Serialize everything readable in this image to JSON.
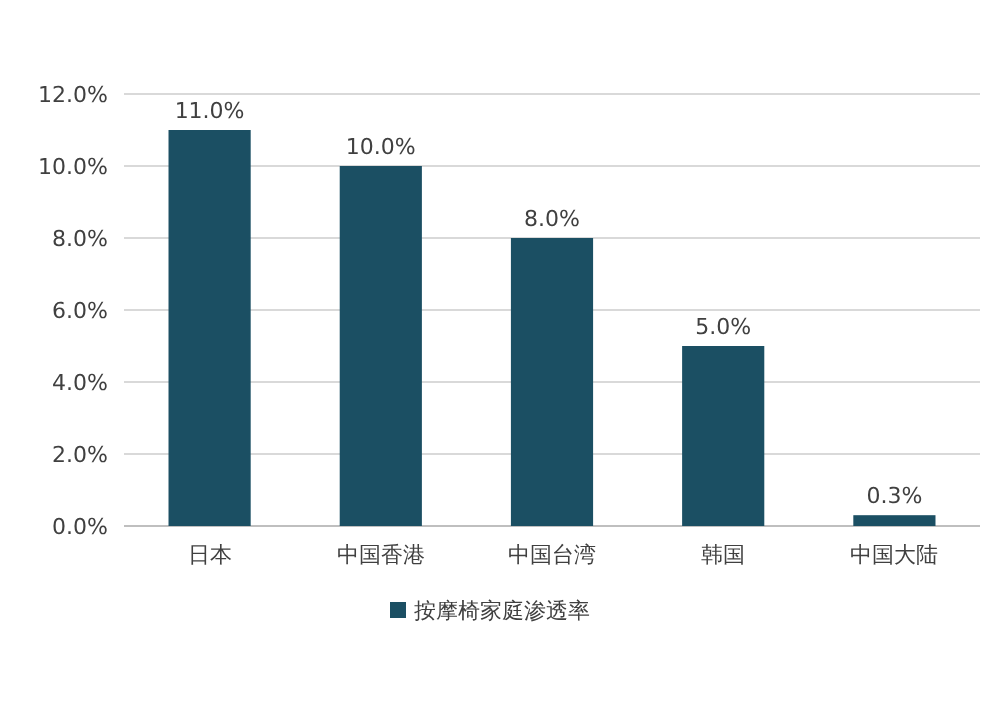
{
  "chart_data": {
    "type": "bar",
    "categories": [
      "日本",
      "中国香港",
      "中国台湾",
      "韩国",
      "中国大陆"
    ],
    "series": [
      {
        "name": "按摩椅家庭渗透率",
        "color": "#1b4f63",
        "values": [
          11.0,
          10.0,
          8.0,
          5.0,
          0.3
        ],
        "value_labels": [
          "11.0%",
          "10.0%",
          "8.0%",
          "5.0%",
          "0.3%"
        ]
      }
    ],
    "ylim": [
      0,
      12
    ],
    "yticks": [
      {
        "value": 0,
        "label": "0.0%"
      },
      {
        "value": 2,
        "label": "2.0%"
      },
      {
        "value": 4,
        "label": "4.0%"
      },
      {
        "value": 6,
        "label": "6.0%"
      },
      {
        "value": 8,
        "label": "8.0%"
      },
      {
        "value": 10,
        "label": "10.0%"
      },
      {
        "value": 12,
        "label": "12.0%"
      }
    ],
    "grid": "y",
    "legend": "bottom"
  }
}
